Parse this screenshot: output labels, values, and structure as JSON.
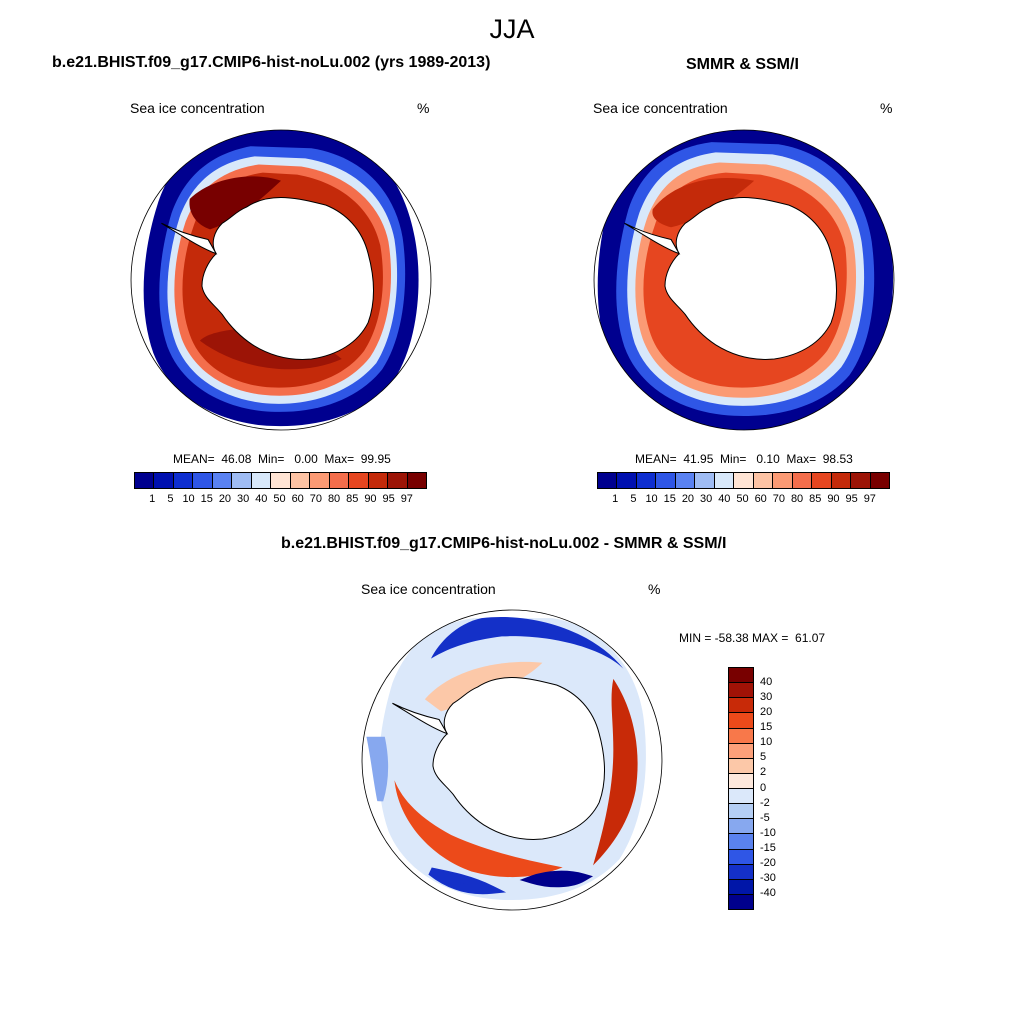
{
  "season": "JJA",
  "colors": {
    "conc": [
      "#00008f",
      "#0010b0",
      "#0e2ed0",
      "#2f56e6",
      "#5a82f2",
      "#9fbcf4",
      "#d8e8fa",
      "#ffe4d4",
      "#fdc3a4",
      "#fb9a74",
      "#f46e4c",
      "#e64620",
      "#c42a0a",
      "#9c1406",
      "#780000"
    ],
    "diff": [
      "#780000",
      "#a01206",
      "#c82a08",
      "#ec4a1a",
      "#f8784a",
      "#fca07a",
      "#fcc8a8",
      "#fde8dc",
      "#dbe8fa",
      "#b4cef4",
      "#87a8ef",
      "#5a82ee",
      "#2f56e6",
      "#1430c8",
      "#0016a8",
      "#00008c"
    ],
    "land": "#ffffff",
    "ocean": "#ffffff"
  },
  "panels": {
    "model": {
      "case_title": "b.e21.BHIST.f09_g17.CMIP6-hist-noLu.002 (yrs 1989-2013)",
      "var_label": "Sea ice concentration",
      "unit": "%",
      "stats": "MEAN=  46.08  Min=   0.00  Max=  99.95",
      "mean": 46.08,
      "min": 0.0,
      "max": 99.95
    },
    "obs": {
      "case_title": "SMMR & SSM/I",
      "var_label": "Sea ice concentration",
      "unit": "%",
      "stats": "MEAN=  41.95  Min=   0.10  Max=  98.53",
      "mean": 41.95,
      "min": 0.1,
      "max": 98.53
    },
    "diff": {
      "case_title": "b.e21.BHIST.f09_g17.CMIP6-hist-noLu.002 - SMMR & SSM/I",
      "var_label": "Sea ice concentration",
      "unit": "%",
      "stats": "MIN = -58.38 MAX =  61.07",
      "min": -58.38,
      "max": 61.07
    }
  },
  "colorbar_conc": {
    "levels": [
      "1",
      "5",
      "10",
      "15",
      "20",
      "30",
      "40",
      "50",
      "60",
      "70",
      "80",
      "85",
      "90",
      "95",
      "97"
    ]
  },
  "colorbar_diff": {
    "levels": [
      "40",
      "30",
      "20",
      "15",
      "10",
      "5",
      "2",
      "0",
      "-2",
      "-5",
      "-10",
      "-15",
      "-20",
      "-30",
      "-40"
    ]
  }
}
